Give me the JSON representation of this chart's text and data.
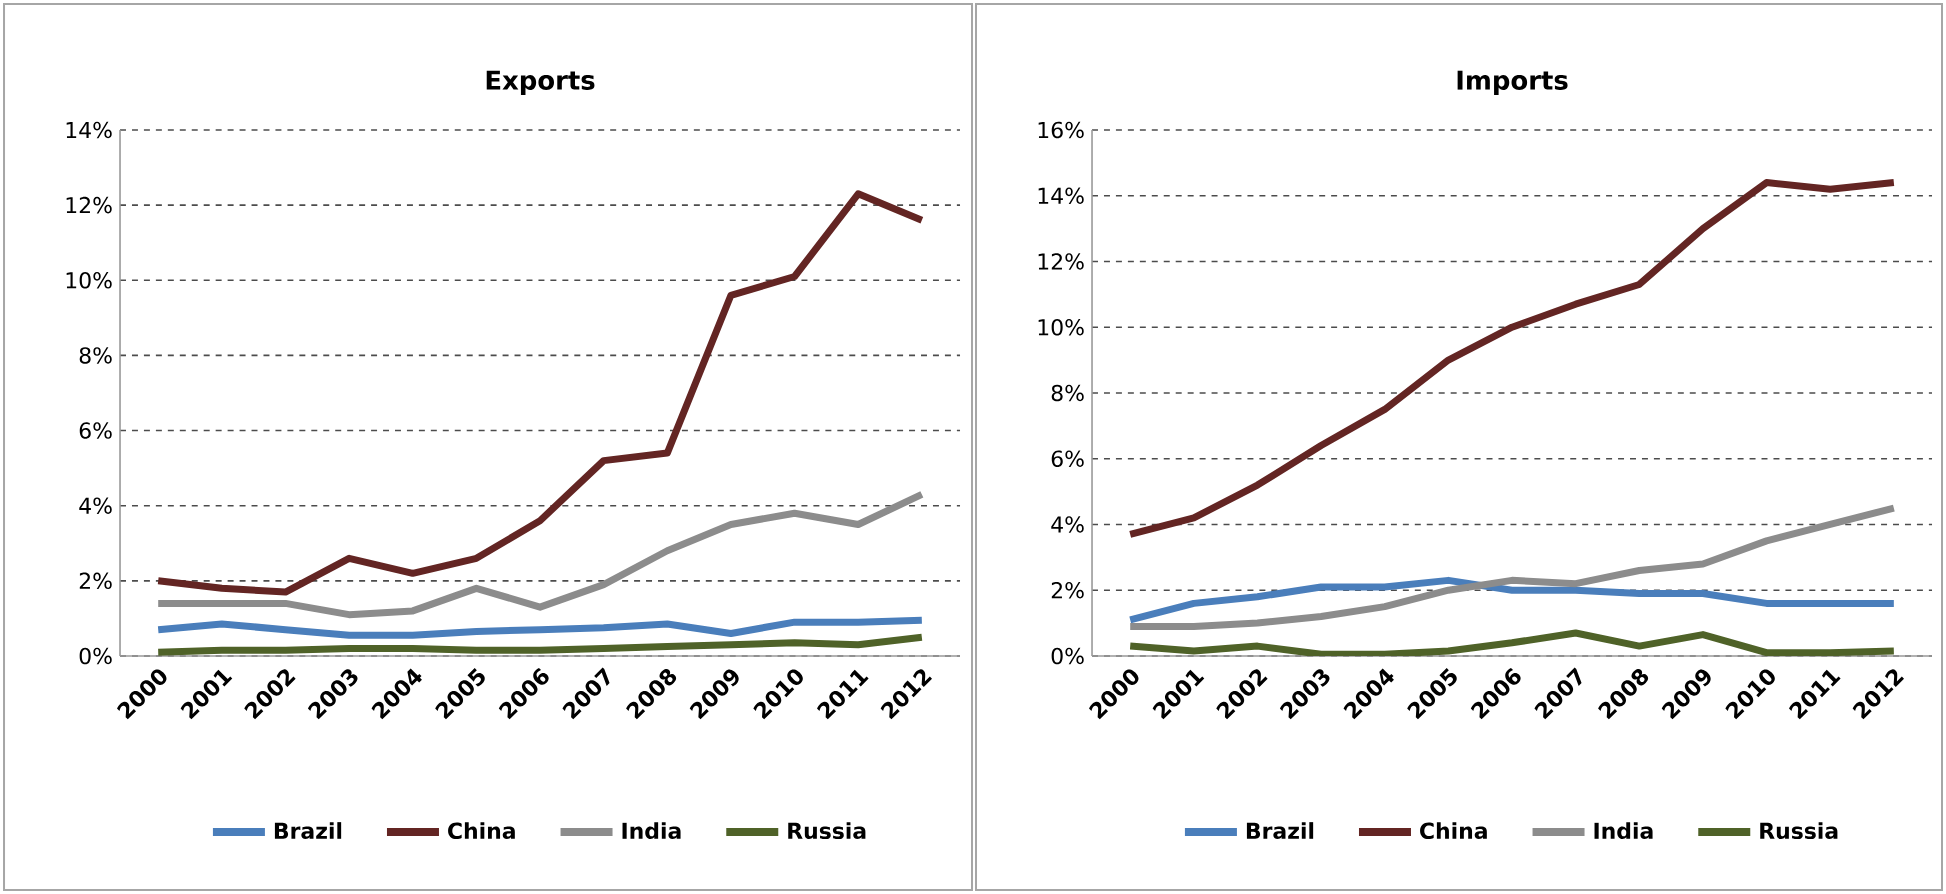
{
  "chart_data": [
    {
      "type": "line",
      "title": "Exports",
      "categories": [
        "2000",
        "2001",
        "2002",
        "2003",
        "2004",
        "2005",
        "2006",
        "2007",
        "2008",
        "2009",
        "2010",
        "2011",
        "2012"
      ],
      "series": [
        {
          "name": "Brazil",
          "color": "#4a7ebb",
          "values": [
            0.7,
            0.85,
            0.7,
            0.55,
            0.55,
            0.65,
            0.7,
            0.75,
            0.85,
            0.6,
            0.9,
            0.9,
            0.95
          ]
        },
        {
          "name": "China",
          "color": "#632523",
          "values": [
            2.0,
            1.8,
            1.7,
            2.6,
            2.2,
            2.6,
            3.6,
            5.2,
            5.4,
            9.6,
            10.1,
            12.3,
            11.6
          ]
        },
        {
          "name": "India",
          "color": "#8c8c8c",
          "values": [
            1.4,
            1.4,
            1.4,
            1.1,
            1.2,
            1.8,
            1.3,
            1.9,
            2.8,
            3.5,
            3.8,
            3.5,
            4.3
          ]
        },
        {
          "name": "Russia",
          "color": "#4f6228",
          "values": [
            0.1,
            0.15,
            0.15,
            0.2,
            0.2,
            0.15,
            0.15,
            0.2,
            0.25,
            0.3,
            0.35,
            0.3,
            0.5
          ]
        }
      ],
      "ylim": [
        0,
        14
      ],
      "yticks": [
        {
          "value": 0,
          "label": "0%"
        },
        {
          "value": 2,
          "label": "2%"
        },
        {
          "value": 4,
          "label": "4%"
        },
        {
          "value": 6,
          "label": "6%"
        },
        {
          "value": 8,
          "label": "8%"
        },
        {
          "value": 10,
          "label": "10%"
        },
        {
          "value": 12,
          "label": "12%"
        },
        {
          "value": 14,
          "label": "14%"
        }
      ],
      "grid": "y",
      "legend": "bottom",
      "line_style": "solid"
    },
    {
      "type": "line",
      "title": "Imports",
      "categories": [
        "2000",
        "2001",
        "2002",
        "2003",
        "2004",
        "2005",
        "2006",
        "2007",
        "2008",
        "2009",
        "2010",
        "2011",
        "2012"
      ],
      "series": [
        {
          "name": "Brazil",
          "color": "#4a7ebb",
          "values": [
            1.1,
            1.6,
            1.8,
            2.1,
            2.1,
            2.3,
            2.0,
            2.0,
            1.9,
            1.9,
            1.6,
            1.6,
            1.6
          ]
        },
        {
          "name": "China",
          "color": "#632523",
          "values": [
            3.7,
            4.2,
            5.2,
            6.4,
            7.5,
            9.0,
            10.0,
            10.7,
            11.3,
            13.0,
            14.4,
            14.2,
            14.4
          ]
        },
        {
          "name": "India",
          "color": "#8c8c8c",
          "values": [
            0.9,
            0.9,
            1.0,
            1.2,
            1.5,
            2.0,
            2.3,
            2.2,
            2.6,
            2.8,
            3.5,
            4.0,
            4.5
          ]
        },
        {
          "name": "Russia",
          "color": "#4f6228",
          "values": [
            0.3,
            0.15,
            0.3,
            0.05,
            0.05,
            0.15,
            0.4,
            0.7,
            0.3,
            0.65,
            0.1,
            0.1,
            0.15
          ]
        }
      ],
      "ylim": [
        0,
        16
      ],
      "yticks": [
        {
          "value": 0,
          "label": "0%"
        },
        {
          "value": 2,
          "label": "2%"
        },
        {
          "value": 4,
          "label": "4%"
        },
        {
          "value": 6,
          "label": "6%"
        },
        {
          "value": 8,
          "label": "8%"
        },
        {
          "value": 10,
          "label": "10%"
        },
        {
          "value": 12,
          "label": "12%"
        },
        {
          "value": 14,
          "label": "14%"
        },
        {
          "value": 16,
          "label": "16%"
        }
      ],
      "grid": "y",
      "legend": "bottom",
      "line_style": "solid"
    }
  ]
}
